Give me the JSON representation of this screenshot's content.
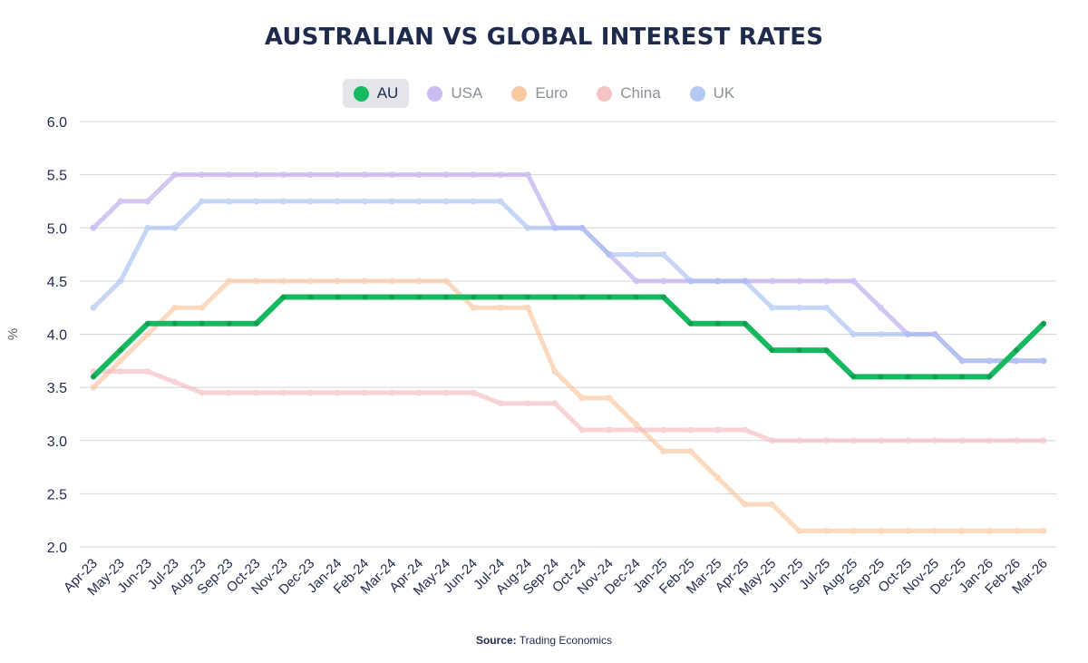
{
  "chart_data": {
    "type": "line",
    "title": "AUSTRALIAN VS GLOBAL INTEREST RATES",
    "ylabel": "%",
    "ylim": [
      2.0,
      6.0
    ],
    "yticks": [
      "6.0",
      "5.5",
      "5.0",
      "4.5",
      "4.0",
      "3.5",
      "3.0",
      "2.5",
      "2.0"
    ],
    "grid": true,
    "legend_position": "top-center",
    "categories": [
      "Apr-23",
      "May-23",
      "Jun-23",
      "Jul-23",
      "Aug-23",
      "Sep-23",
      "Oct-23",
      "Nov-23",
      "Dec-23",
      "Jan-24",
      "Feb-24",
      "Mar-24",
      "Apr-24",
      "May-24",
      "Jun-24",
      "Jul-24",
      "Aug-24",
      "Sep-24",
      "Oct-24",
      "Nov-24",
      "Dec-24",
      "Jan-25",
      "Feb-25",
      "Mar-25",
      "Apr-25",
      "May-25",
      "Jun-25",
      "Jul-25",
      "Aug-25",
      "Sep-25",
      "Oct-25",
      "Nov-25",
      "Dec-25",
      "Jan-26",
      "Feb-26",
      "Mar-26"
    ],
    "series": [
      {
        "name": "USA",
        "color": "#b9a4f0",
        "values": [
          5.0,
          5.25,
          5.25,
          5.5,
          5.5,
          5.5,
          5.5,
          5.5,
          5.5,
          5.5,
          5.5,
          5.5,
          5.5,
          5.5,
          5.5,
          5.5,
          5.5,
          5.0,
          5.0,
          4.75,
          4.5,
          4.5,
          4.5,
          4.5,
          4.5,
          4.5,
          4.5,
          4.5,
          4.5,
          4.25,
          4.0,
          4.0,
          3.75,
          3.75,
          3.75,
          3.75
        ]
      },
      {
        "name": "UK",
        "color": "#a3bdf3",
        "values": [
          4.25,
          4.5,
          5.0,
          5.0,
          5.25,
          5.25,
          5.25,
          5.25,
          5.25,
          5.25,
          5.25,
          5.25,
          5.25,
          5.25,
          5.25,
          5.25,
          5.0,
          5.0,
          5.0,
          4.75,
          4.75,
          4.75,
          4.5,
          4.5,
          4.5,
          4.25,
          4.25,
          4.25,
          4.0,
          4.0,
          4.0,
          4.0,
          3.75,
          3.75,
          3.75,
          3.75
        ]
      },
      {
        "name": "Euro",
        "color": "#f7c298",
        "values": [
          3.5,
          3.75,
          4.0,
          4.25,
          4.25,
          4.5,
          4.5,
          4.5,
          4.5,
          4.5,
          4.5,
          4.5,
          4.5,
          4.5,
          4.25,
          4.25,
          4.25,
          3.65,
          3.4,
          3.4,
          3.15,
          2.9,
          2.9,
          2.65,
          2.4,
          2.4,
          2.15,
          2.15,
          2.15,
          2.15,
          2.15,
          2.15,
          2.15,
          2.15,
          2.15,
          2.15
        ]
      },
      {
        "name": "China",
        "color": "#f3b9bd",
        "values": [
          3.65,
          3.65,
          3.65,
          3.55,
          3.45,
          3.45,
          3.45,
          3.45,
          3.45,
          3.45,
          3.45,
          3.45,
          3.45,
          3.45,
          3.45,
          3.35,
          3.35,
          3.35,
          3.1,
          3.1,
          3.1,
          3.1,
          3.1,
          3.1,
          3.1,
          3.0,
          3.0,
          3.0,
          3.0,
          3.0,
          3.0,
          3.0,
          3.0,
          3.0,
          3.0,
          3.0
        ]
      },
      {
        "name": "AU",
        "color": "#16b960",
        "values": [
          3.6,
          3.85,
          4.1,
          4.1,
          4.1,
          4.1,
          4.1,
          4.35,
          4.35,
          4.35,
          4.35,
          4.35,
          4.35,
          4.35,
          4.35,
          4.35,
          4.35,
          4.35,
          4.35,
          4.35,
          4.35,
          4.35,
          4.1,
          4.1,
          4.1,
          3.85,
          3.85,
          3.85,
          3.6,
          3.6,
          3.6,
          3.6,
          3.6,
          3.6,
          3.85,
          4.1
        ]
      }
    ]
  },
  "legend": {
    "items": [
      {
        "name": "AU",
        "color": "#16b960",
        "active": true
      },
      {
        "name": "USA",
        "color": "#ccbcf2",
        "active": false
      },
      {
        "name": "Euro",
        "color": "#f8c9a2",
        "active": false
      },
      {
        "name": "China",
        "color": "#f5c2c5",
        "active": false
      },
      {
        "name": "UK",
        "color": "#b6c9f5",
        "active": false
      }
    ]
  },
  "source": {
    "label": "Source:",
    "text": "Trading Economics"
  }
}
